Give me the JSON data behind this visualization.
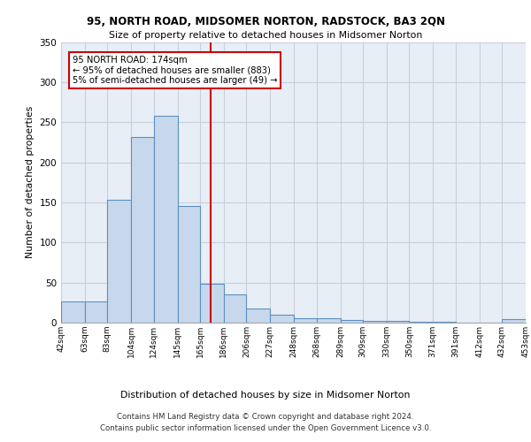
{
  "title1": "95, NORTH ROAD, MIDSOMER NORTON, RADSTOCK, BA3 2QN",
  "title2": "Size of property relative to detached houses in Midsomer Norton",
  "xlabel": "Distribution of detached houses by size in Midsomer Norton",
  "ylabel": "Number of detached properties",
  "footer1": "Contains HM Land Registry data © Crown copyright and database right 2024.",
  "footer2": "Contains public sector information licensed under the Open Government Licence v3.0.",
  "annotation_text": "95 NORTH ROAD: 174sqm\n← 95% of detached houses are smaller (883)\n5% of semi-detached houses are larger (49) →",
  "red_line_x": 174,
  "bin_edges": [
    42,
    63,
    83,
    104,
    124,
    145,
    165,
    186,
    206,
    227,
    248,
    268,
    289,
    309,
    330,
    350,
    371,
    391,
    412,
    432,
    453
  ],
  "bar_heights": [
    27,
    27,
    153,
    232,
    258,
    145,
    48,
    35,
    18,
    10,
    6,
    5,
    3,
    2,
    2,
    1,
    1,
    0,
    0,
    4
  ],
  "bar_color": "#c8d8ec",
  "bar_edge_color": "#5b8fc4",
  "grid_color": "#c8d0dc",
  "background_color": "#e8eef6",
  "annotation_box_color": "white",
  "annotation_box_edge": "#cc0000",
  "red_line_color": "#cc0000",
  "ylim": [
    0,
    350
  ],
  "yticks": [
    0,
    50,
    100,
    150,
    200,
    250,
    300,
    350
  ]
}
